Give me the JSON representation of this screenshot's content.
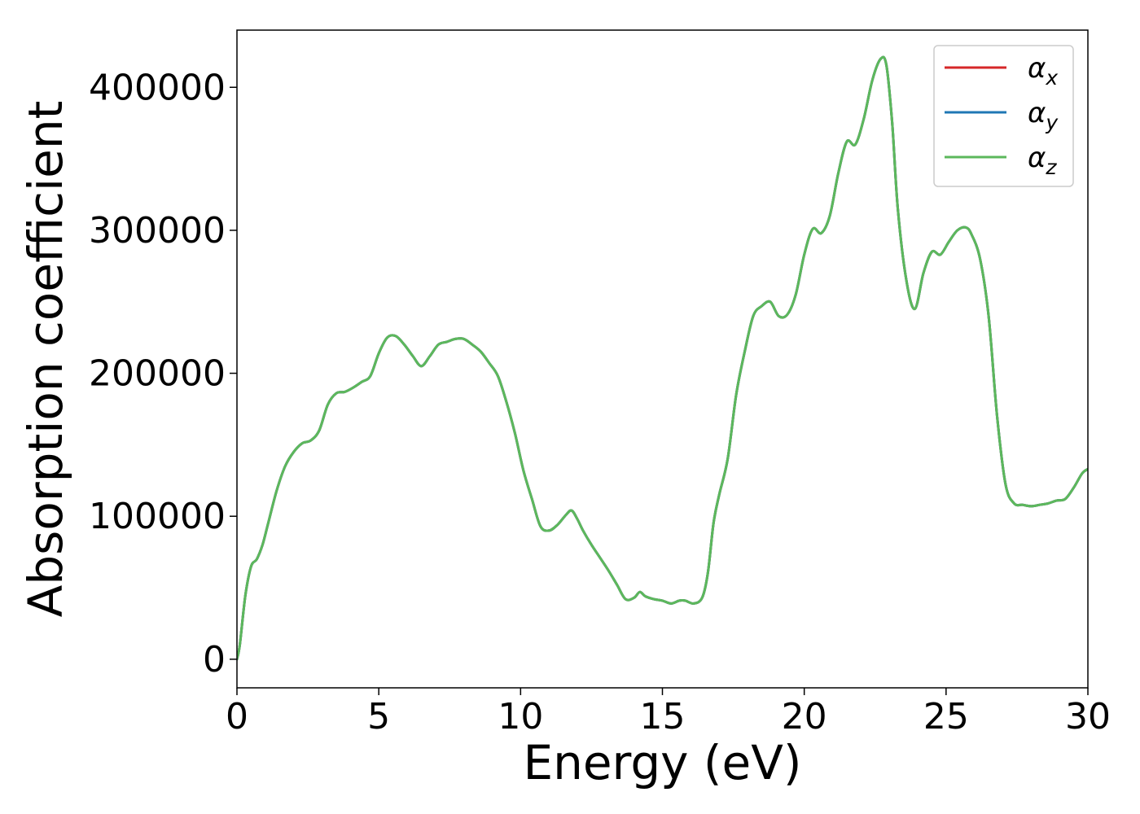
{
  "chart_data": {
    "type": "line",
    "xlabel": "Energy (eV)",
    "ylabel": "Absorption coefficient",
    "xlim": [
      0,
      30
    ],
    "ylim": [
      -20000,
      440000
    ],
    "xticks": [
      0,
      5,
      10,
      15,
      20,
      25,
      30
    ],
    "xtick_labels": [
      "0",
      "5",
      "10",
      "15",
      "20",
      "25",
      "30"
    ],
    "yticks": [
      0,
      100000,
      200000,
      300000,
      400000
    ],
    "ytick_labels": [
      "0",
      "100000",
      "200000",
      "300000",
      "400000"
    ],
    "grid": false,
    "legend_position": "top-right",
    "series": [
      {
        "name": "αx",
        "legend": {
          "base": "α",
          "sub": "x"
        },
        "color": "#d62728",
        "x": [
          0,
          0.1,
          0.3,
          0.5,
          0.7,
          0.9,
          1.1,
          1.4,
          1.7,
          2.0,
          2.3,
          2.6,
          2.9,
          3.2,
          3.5,
          3.8,
          4.1,
          4.4,
          4.7,
          5.0,
          5.3,
          5.6,
          5.9,
          6.2,
          6.5,
          6.8,
          7.1,
          7.4,
          7.7,
          8.0,
          8.3,
          8.6,
          8.9,
          9.2,
          9.5,
          9.8,
          10.1,
          10.4,
          10.7,
          11.0,
          11.3,
          11.6,
          11.8,
          12.0,
          12.2,
          12.5,
          12.8,
          13.1,
          13.4,
          13.7,
          14.0,
          14.2,
          14.4,
          14.7,
          15.0,
          15.3,
          15.6,
          15.8,
          16.1,
          16.4,
          16.6,
          16.8,
          17.0,
          17.3,
          17.6,
          17.9,
          18.2,
          18.5,
          18.8,
          19.1,
          19.4,
          19.7,
          20.0,
          20.3,
          20.6,
          20.9,
          21.2,
          21.5,
          21.8,
          22.1,
          22.4,
          22.7,
          22.9,
          23.1,
          23.3,
          23.6,
          23.9,
          24.2,
          24.5,
          24.8,
          25.1,
          25.4,
          25.7,
          25.9,
          26.2,
          26.5,
          26.8,
          27.1,
          27.4,
          27.7,
          28.0,
          28.3,
          28.6,
          28.9,
          29.2,
          29.5,
          29.8,
          30.0
        ],
        "y": [
          0,
          10000,
          45000,
          65000,
          70000,
          80000,
          95000,
          118000,
          135000,
          145000,
          151000,
          153000,
          160000,
          178000,
          186000,
          187000,
          190000,
          194000,
          198000,
          214000,
          225000,
          226000,
          220000,
          212000,
          205000,
          212000,
          220000,
          222000,
          224000,
          224000,
          220000,
          215000,
          207000,
          198000,
          180000,
          158000,
          132000,
          112000,
          93000,
          90000,
          94000,
          101000,
          104000,
          98000,
          90000,
          80000,
          71000,
          62000,
          52000,
          42000,
          43000,
          47000,
          44000,
          42000,
          41000,
          39000,
          41000,
          41000,
          39000,
          43000,
          60000,
          95000,
          115000,
          140000,
          185000,
          215000,
          240000,
          247000,
          250000,
          240000,
          241000,
          255000,
          283000,
          301000,
          298000,
          310000,
          340000,
          362000,
          360000,
          378000,
          405000,
          420000,
          415000,
          375000,
          315000,
          265000,
          245000,
          270000,
          285000,
          283000,
          292000,
          300000,
          302000,
          297000,
          280000,
          240000,
          170000,
          122000,
          109000,
          108000,
          107000,
          108000,
          109000,
          111000,
          112000,
          120000,
          130000,
          133000
        ]
      },
      {
        "name": "αy",
        "legend": {
          "base": "α",
          "sub": "y"
        },
        "color": "#1f77b4",
        "x": [
          0,
          0.1,
          0.3,
          0.5,
          0.7,
          0.9,
          1.1,
          1.4,
          1.7,
          2.0,
          2.3,
          2.6,
          2.9,
          3.2,
          3.5,
          3.8,
          4.1,
          4.4,
          4.7,
          5.0,
          5.3,
          5.6,
          5.9,
          6.2,
          6.5,
          6.8,
          7.1,
          7.4,
          7.7,
          8.0,
          8.3,
          8.6,
          8.9,
          9.2,
          9.5,
          9.8,
          10.1,
          10.4,
          10.7,
          11.0,
          11.3,
          11.6,
          11.8,
          12.0,
          12.2,
          12.5,
          12.8,
          13.1,
          13.4,
          13.7,
          14.0,
          14.2,
          14.4,
          14.7,
          15.0,
          15.3,
          15.6,
          15.8,
          16.1,
          16.4,
          16.6,
          16.8,
          17.0,
          17.3,
          17.6,
          17.9,
          18.2,
          18.5,
          18.8,
          19.1,
          19.4,
          19.7,
          20.0,
          20.3,
          20.6,
          20.9,
          21.2,
          21.5,
          21.8,
          22.1,
          22.4,
          22.7,
          22.9,
          23.1,
          23.3,
          23.6,
          23.9,
          24.2,
          24.5,
          24.8,
          25.1,
          25.4,
          25.7,
          25.9,
          26.2,
          26.5,
          26.8,
          27.1,
          27.4,
          27.7,
          28.0,
          28.3,
          28.6,
          28.9,
          29.2,
          29.5,
          29.8,
          30.0
        ],
        "y": [
          0,
          10000,
          45000,
          65000,
          70000,
          80000,
          95000,
          118000,
          135000,
          145000,
          151000,
          153000,
          160000,
          178000,
          186000,
          187000,
          190000,
          194000,
          198000,
          214000,
          225000,
          226000,
          220000,
          212000,
          205000,
          212000,
          220000,
          222000,
          224000,
          224000,
          220000,
          215000,
          207000,
          198000,
          180000,
          158000,
          132000,
          112000,
          93000,
          90000,
          94000,
          101000,
          104000,
          98000,
          90000,
          80000,
          71000,
          62000,
          52000,
          42000,
          43000,
          47000,
          44000,
          42000,
          41000,
          39000,
          41000,
          41000,
          39000,
          43000,
          60000,
          95000,
          115000,
          140000,
          185000,
          215000,
          240000,
          247000,
          250000,
          240000,
          241000,
          255000,
          283000,
          301000,
          298000,
          310000,
          340000,
          362000,
          360000,
          378000,
          405000,
          420000,
          415000,
          375000,
          315000,
          265000,
          245000,
          270000,
          285000,
          283000,
          292000,
          300000,
          302000,
          297000,
          280000,
          240000,
          170000,
          122000,
          109000,
          108000,
          107000,
          108000,
          109000,
          111000,
          112000,
          120000,
          130000,
          133000
        ]
      },
      {
        "name": "αz",
        "legend": {
          "base": "α",
          "sub": "z"
        },
        "color": "#5cb85c",
        "x": [
          0,
          0.1,
          0.3,
          0.5,
          0.7,
          0.9,
          1.1,
          1.4,
          1.7,
          2.0,
          2.3,
          2.6,
          2.9,
          3.2,
          3.5,
          3.8,
          4.1,
          4.4,
          4.7,
          5.0,
          5.3,
          5.6,
          5.9,
          6.2,
          6.5,
          6.8,
          7.1,
          7.4,
          7.7,
          8.0,
          8.3,
          8.6,
          8.9,
          9.2,
          9.5,
          9.8,
          10.1,
          10.4,
          10.7,
          11.0,
          11.3,
          11.6,
          11.8,
          12.0,
          12.2,
          12.5,
          12.8,
          13.1,
          13.4,
          13.7,
          14.0,
          14.2,
          14.4,
          14.7,
          15.0,
          15.3,
          15.6,
          15.8,
          16.1,
          16.4,
          16.6,
          16.8,
          17.0,
          17.3,
          17.6,
          17.9,
          18.2,
          18.5,
          18.8,
          19.1,
          19.4,
          19.7,
          20.0,
          20.3,
          20.6,
          20.9,
          21.2,
          21.5,
          21.8,
          22.1,
          22.4,
          22.7,
          22.9,
          23.1,
          23.3,
          23.6,
          23.9,
          24.2,
          24.5,
          24.8,
          25.1,
          25.4,
          25.7,
          25.9,
          26.2,
          26.5,
          26.8,
          27.1,
          27.4,
          27.7,
          28.0,
          28.3,
          28.6,
          28.9,
          29.2,
          29.5,
          29.8,
          30.0
        ],
        "y": [
          0,
          10000,
          45000,
          65000,
          70000,
          80000,
          95000,
          118000,
          135000,
          145000,
          151000,
          153000,
          160000,
          178000,
          186000,
          187000,
          190000,
          194000,
          198000,
          214000,
          225000,
          226000,
          220000,
          212000,
          205000,
          212000,
          220000,
          222000,
          224000,
          224000,
          220000,
          215000,
          207000,
          198000,
          180000,
          158000,
          132000,
          112000,
          93000,
          90000,
          94000,
          101000,
          104000,
          98000,
          90000,
          80000,
          71000,
          62000,
          52000,
          42000,
          43000,
          47000,
          44000,
          42000,
          41000,
          39000,
          41000,
          41000,
          39000,
          43000,
          60000,
          95000,
          115000,
          140000,
          185000,
          215000,
          240000,
          247000,
          250000,
          240000,
          241000,
          255000,
          283000,
          301000,
          298000,
          310000,
          340000,
          362000,
          360000,
          378000,
          405000,
          420000,
          415000,
          375000,
          315000,
          265000,
          245000,
          270000,
          285000,
          283000,
          292000,
          300000,
          302000,
          297000,
          280000,
          240000,
          170000,
          122000,
          109000,
          108000,
          107000,
          108000,
          109000,
          111000,
          112000,
          120000,
          130000,
          133000
        ]
      }
    ]
  }
}
